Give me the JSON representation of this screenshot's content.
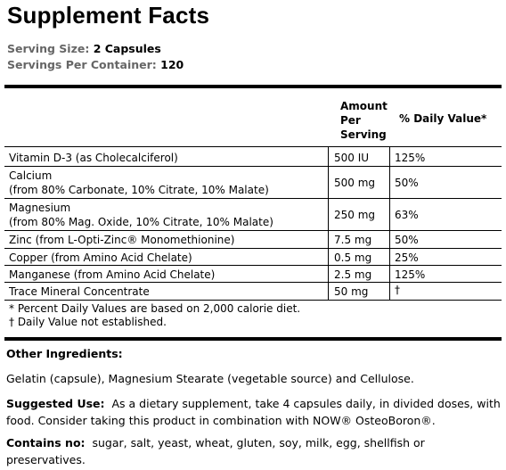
{
  "title": "Supplement Facts",
  "serving": {
    "size_label": "Serving Size:",
    "size_value": "2 Capsules",
    "per_container_label": "Servings Per Container:",
    "per_container_value": "120"
  },
  "table": {
    "header_amount": [
      "Amount",
      "Per",
      "Serving"
    ],
    "header_dv": "% Daily Value*",
    "rows": [
      {
        "name": [
          "Vitamin D-3 (as Cholecalciferol)"
        ],
        "amount": "500 IU",
        "dv": "125%"
      },
      {
        "name": [
          "Calcium",
          "(from 80% Carbonate, 10% Citrate, 10% Malate)"
        ],
        "amount": "500 mg",
        "dv": "50%"
      },
      {
        "name": [
          "Magnesium",
          "(from 80% Mag. Oxide, 10% Citrate, 10% Malate)"
        ],
        "amount": "250 mg",
        "dv": "63%"
      },
      {
        "name": [
          "Zinc (from L-Opti-Zinc® Monomethionine)"
        ],
        "amount": "7.5 mg",
        "dv": "50%"
      },
      {
        "name": [
          "Copper (from Amino Acid Chelate)"
        ],
        "amount": "0.5 mg",
        "dv": "25%"
      },
      {
        "name": [
          "Manganese (from Amino Acid Chelate)"
        ],
        "amount": "2.5 mg",
        "dv": "125%"
      },
      {
        "name": [
          "Trace Mineral Concentrate"
        ],
        "amount": "50 mg",
        "dv": "†"
      }
    ],
    "footnote_1": "* Percent Daily Values are based on 2,000 calorie diet.",
    "footnote_2": "† Daily Value not established."
  },
  "other_ingredients": {
    "heading": "Other Ingredients:",
    "text": "Gelatin (capsule), Magnesium Stearate (vegetable source) and Cellulose."
  },
  "suggested_use": {
    "label": "Suggested Use:",
    "text": "As a dietary supplement, take 4 capsules daily, in divided doses, with food. Consider taking this product in combination with NOW® OsteoBoron®."
  },
  "contains_no": {
    "label": "Contains no:",
    "text": "sugar, salt, yeast, wheat, gluten, soy, milk, egg, shellfish or preservatives."
  }
}
